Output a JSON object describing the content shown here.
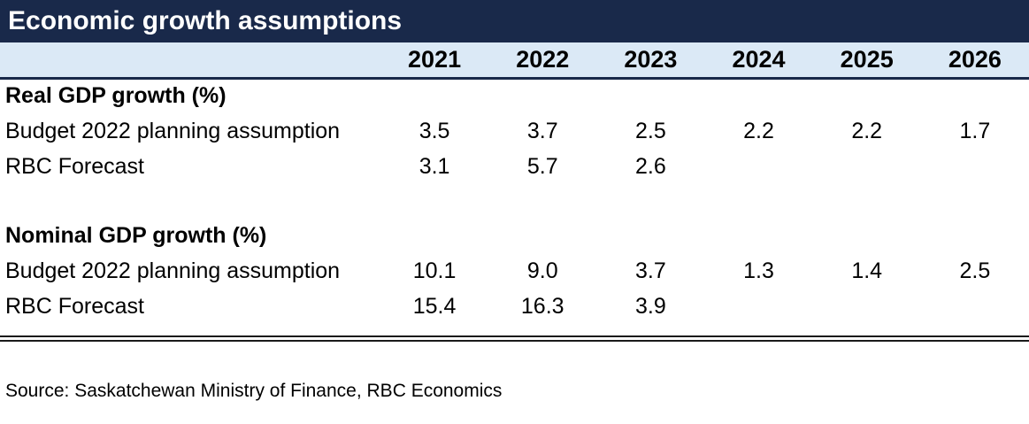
{
  "title": "Economic growth assumptions",
  "source_note": "Source: Saskatchewan Ministry of Finance, RBC Economics",
  "colors": {
    "title_bar_bg": "#19294a",
    "title_text": "#ffffff",
    "header_row_bg": "#dbe9f6",
    "header_underline": "#19294a",
    "body_text": "#000000",
    "double_rule": "#1a1a1a"
  },
  "chart_data": {
    "type": "table",
    "title": "Economic growth assumptions",
    "years": [
      "2021",
      "2022",
      "2023",
      "2024",
      "2025",
      "2026"
    ],
    "sections": [
      {
        "header": "Real GDP growth (%)",
        "rows": [
          {
            "label": "Budget 2022 planning assumption",
            "values": [
              "3.5",
              "3.7",
              "2.5",
              "2.2",
              "2.2",
              "1.7"
            ]
          },
          {
            "label": "RBC Forecast",
            "values": [
              "3.1",
              "5.7",
              "2.6",
              "",
              "",
              ""
            ]
          }
        ]
      },
      {
        "header": "Nominal GDP growth (%)",
        "rows": [
          {
            "label": "Budget 2022 planning assumption",
            "values": [
              "10.1",
              "9.0",
              "3.7",
              "1.3",
              "1.4",
              "2.5"
            ]
          },
          {
            "label": "RBC Forecast",
            "values": [
              "15.4",
              "16.3",
              "3.9",
              "",
              "",
              ""
            ]
          }
        ]
      }
    ],
    "source": "Source: Saskatchewan Ministry of Finance, RBC Economics"
  }
}
